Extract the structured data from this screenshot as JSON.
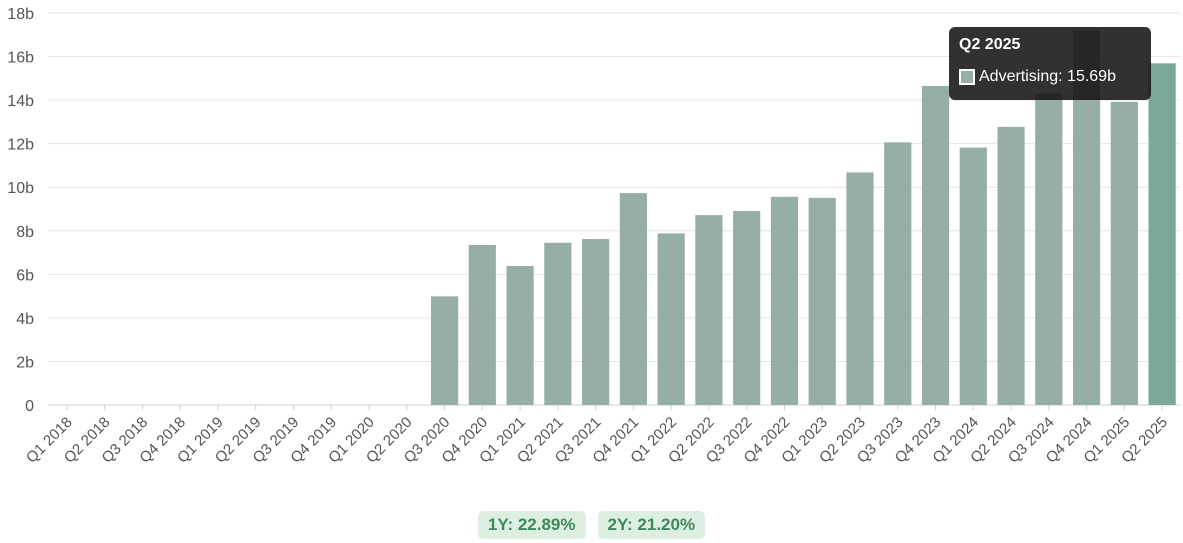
{
  "chart_data": {
    "type": "bar",
    "categories": [
      "Q1 2018",
      "Q2 2018",
      "Q3 2018",
      "Q4 2018",
      "Q1 2019",
      "Q2 2019",
      "Q3 2019",
      "Q4 2019",
      "Q1 2020",
      "Q2 2020",
      "Q3 2020",
      "Q4 2020",
      "Q1 2021",
      "Q2 2021",
      "Q3 2021",
      "Q4 2021",
      "Q1 2022",
      "Q2 2022",
      "Q3 2022",
      "Q4 2022",
      "Q1 2023",
      "Q2 2023",
      "Q3 2023",
      "Q4 2023",
      "Q1 2024",
      "Q2 2024",
      "Q3 2024",
      "Q4 2024",
      "Q1 2025",
      "Q2 2025"
    ],
    "series": [
      {
        "name": "Advertising",
        "values": [
          null,
          null,
          null,
          null,
          null,
          null,
          null,
          null,
          null,
          null,
          4.99,
          7.35,
          6.38,
          7.45,
          7.62,
          9.73,
          7.88,
          8.72,
          8.91,
          9.56,
          9.51,
          10.68,
          12.06,
          14.65,
          11.82,
          12.77,
          14.3,
          17.2,
          13.92,
          15.69
        ]
      }
    ],
    "ylim": [
      0,
      18
    ],
    "yticks": [
      {
        "value": 0,
        "label": "0"
      },
      {
        "value": 2,
        "label": "2b"
      },
      {
        "value": 4,
        "label": "4b"
      },
      {
        "value": 6,
        "label": "6b"
      },
      {
        "value": 8,
        "label": "8b"
      },
      {
        "value": 10,
        "label": "10b"
      },
      {
        "value": 12,
        "label": "12b"
      },
      {
        "value": 14,
        "label": "14b"
      },
      {
        "value": 16,
        "label": "16b"
      },
      {
        "value": 18,
        "label": "18b"
      }
    ],
    "grid": true,
    "colors": {
      "bar": "#97aea6",
      "bar_highlight": "#7aa999",
      "grid": "#e6e6e6",
      "badge_bg": "#dcefe2",
      "badge_text": "#3c8a5a"
    },
    "highlight_index": 29,
    "tooltip": {
      "title": "Q2 2025",
      "series": "Advertising",
      "value": "15.69b",
      "text": "Advertising: 15.69b"
    }
  },
  "badges": [
    {
      "label": "1Y: 22.89%"
    },
    {
      "label": "2Y: 21.20%"
    }
  ]
}
